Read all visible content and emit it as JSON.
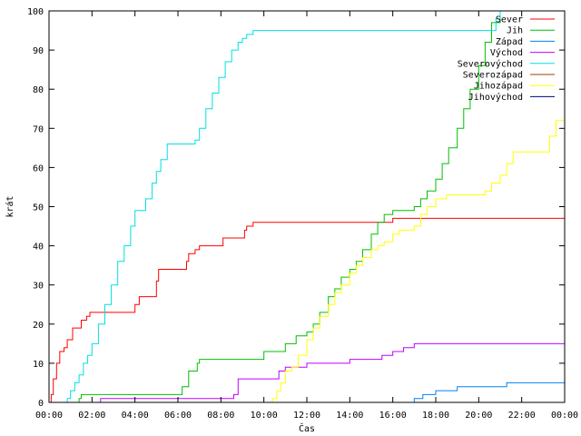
{
  "chart_data": {
    "type": "line",
    "title": "",
    "xlabel": "Čas",
    "ylabel": "krát",
    "x_unit": "hours",
    "xlim": [
      0,
      24
    ],
    "ylim": [
      0,
      100
    ],
    "y_ticks": [
      0,
      10,
      20,
      30,
      40,
      50,
      60,
      70,
      80,
      90,
      100
    ],
    "x_ticks": [
      0,
      2,
      4,
      6,
      8,
      10,
      12,
      14,
      16,
      18,
      20,
      22,
      24
    ],
    "x_tick_labels": [
      "00:00",
      "02:00",
      "04:00",
      "06:00",
      "08:00",
      "10:00",
      "12:00",
      "14:00",
      "16:00",
      "18:00",
      "20:00",
      "22:00",
      "00:00"
    ],
    "grid": false,
    "legend_position": "top-right",
    "series": [
      {
        "name": "Sever",
        "color": "#ff0000",
        "x": [
          0.0,
          0.1,
          0.2,
          0.35,
          0.5,
          0.7,
          0.85,
          1.1,
          1.35,
          1.5,
          1.6,
          1.75,
          1.9,
          2.0,
          3.0,
          3.9,
          4.0,
          4.2,
          4.5,
          5.0,
          5.1,
          5.3,
          6.2,
          6.4,
          6.5,
          6.8,
          7.0,
          7.3,
          8.0,
          8.1,
          8.3,
          9.0,
          9.1,
          9.2,
          9.5,
          11.0,
          13.0,
          14.0,
          15.0,
          15.4,
          15.8,
          16.0,
          17.0,
          20.0,
          22.0,
          24.0
        ],
        "values": [
          0,
          2,
          6,
          10,
          13,
          14,
          16,
          19,
          19,
          21,
          21,
          22,
          23,
          23,
          23,
          23,
          25,
          27,
          27,
          31,
          34,
          34,
          34,
          36,
          38,
          39,
          40,
          40,
          40,
          42,
          42,
          42,
          44,
          45,
          46,
          46,
          46,
          46,
          46,
          46,
          46,
          47,
          47,
          47,
          47,
          47
        ]
      },
      {
        "name": "Jih",
        "color": "#00c000",
        "x": [
          0.0,
          1.3,
          1.4,
          1.5,
          6.0,
          6.2,
          6.5,
          6.9,
          7.0,
          8.5,
          9.5,
          10.0,
          10.2,
          10.5,
          11.0,
          11.5,
          12.0,
          12.3,
          12.6,
          13.0,
          13.3,
          13.6,
          14.0,
          14.3,
          14.6,
          15.0,
          15.3,
          15.6,
          16.0,
          16.3,
          16.6,
          17.0,
          17.3,
          17.6,
          18.0,
          18.3,
          18.6,
          19.0,
          19.3,
          19.6,
          20.0,
          20.3,
          20.6,
          21.0
        ],
        "values": [
          0,
          0,
          1,
          2,
          2,
          4,
          8,
          10,
          11,
          11,
          11,
          13,
          13,
          13,
          15,
          17,
          18,
          20,
          23,
          27,
          29,
          32,
          34,
          36,
          39,
          43,
          46,
          48,
          49,
          49,
          49,
          50,
          52,
          54,
          57,
          61,
          65,
          70,
          75,
          80,
          86,
          92,
          97,
          100
        ]
      },
      {
        "name": "Západ",
        "color": "#0080ff",
        "x": [
          0.0,
          0.8,
          0.85,
          16.9,
          17.0,
          17.2,
          17.4,
          18.0,
          18.5,
          19.0,
          21.0,
          21.3,
          24.0
        ],
        "values": [
          0,
          0,
          0,
          0,
          1,
          1,
          2,
          3,
          3,
          4,
          4,
          5,
          5
        ]
      },
      {
        "name": "Východ",
        "color": "#c000ff",
        "x": [
          0.0,
          2.3,
          2.4,
          8.4,
          8.6,
          8.8,
          10.5,
          10.7,
          11.0,
          11.5,
          12.0,
          13.5,
          14.0,
          15.5,
          16.0,
          16.5,
          17.0,
          24.0
        ],
        "values": [
          0,
          0,
          1,
          1,
          2,
          6,
          6,
          8,
          9,
          9,
          10,
          10,
          11,
          12,
          13,
          14,
          15,
          15
        ]
      },
      {
        "name": "Severovýchod",
        "color": "#00e0e0",
        "x": [
          0.0,
          0.75,
          0.85,
          1.0,
          1.2,
          1.4,
          1.6,
          1.8,
          2.0,
          2.3,
          2.6,
          2.9,
          3.2,
          3.5,
          3.8,
          4.0,
          4.2,
          4.5,
          4.8,
          5.0,
          5.2,
          5.5,
          6.0,
          6.5,
          6.8,
          7.0,
          7.3,
          7.6,
          7.9,
          8.2,
          8.5,
          8.8,
          9.0,
          9.2,
          9.5,
          10.0,
          12.0,
          14.0,
          16.0,
          18.0,
          19.0,
          20.0,
          20.5,
          20.8,
          21.0,
          21.3
        ],
        "values": [
          0,
          0,
          1,
          3,
          5,
          7,
          10,
          12,
          15,
          20,
          25,
          30,
          36,
          40,
          45,
          49,
          49,
          52,
          56,
          59,
          62,
          66,
          66,
          66,
          67,
          70,
          75,
          79,
          83,
          87,
          90,
          92,
          93,
          94,
          95,
          95,
          95,
          95,
          95,
          95,
          95,
          95,
          95,
          98,
          100,
          100
        ]
      },
      {
        "name": "Severozápad",
        "color": "#a04000",
        "x": [
          0.0,
          24.0
        ],
        "values": [
          0,
          0
        ]
      },
      {
        "name": "Jihozápad",
        "color": "#ffff00",
        "x": [
          0.0,
          10.2,
          10.4,
          10.6,
          10.8,
          11.0,
          11.3,
          11.6,
          12.0,
          12.3,
          12.6,
          13.0,
          13.3,
          13.6,
          14.0,
          14.3,
          14.6,
          15.0,
          15.3,
          15.6,
          16.0,
          16.3,
          16.6,
          17.0,
          17.3,
          17.6,
          18.0,
          18.5,
          19.0,
          19.5,
          20.0,
          20.3,
          20.6,
          21.0,
          21.3,
          21.6,
          22.0,
          22.5,
          23.0,
          23.3,
          23.6,
          24.0
        ],
        "values": [
          0,
          0,
          1,
          3,
          5,
          8,
          9,
          12,
          16,
          19,
          22,
          25,
          28,
          30,
          33,
          35,
          37,
          39,
          40,
          41,
          43,
          44,
          44,
          45,
          48,
          50,
          52,
          53,
          53,
          53,
          53,
          54,
          56,
          58,
          61,
          64,
          64,
          64,
          64,
          68,
          72,
          78
        ]
      },
      {
        "name": "Jihovýchod",
        "color": "#000080",
        "x": [
          0.0,
          24.0
        ],
        "values": [
          0,
          0
        ]
      }
    ]
  }
}
